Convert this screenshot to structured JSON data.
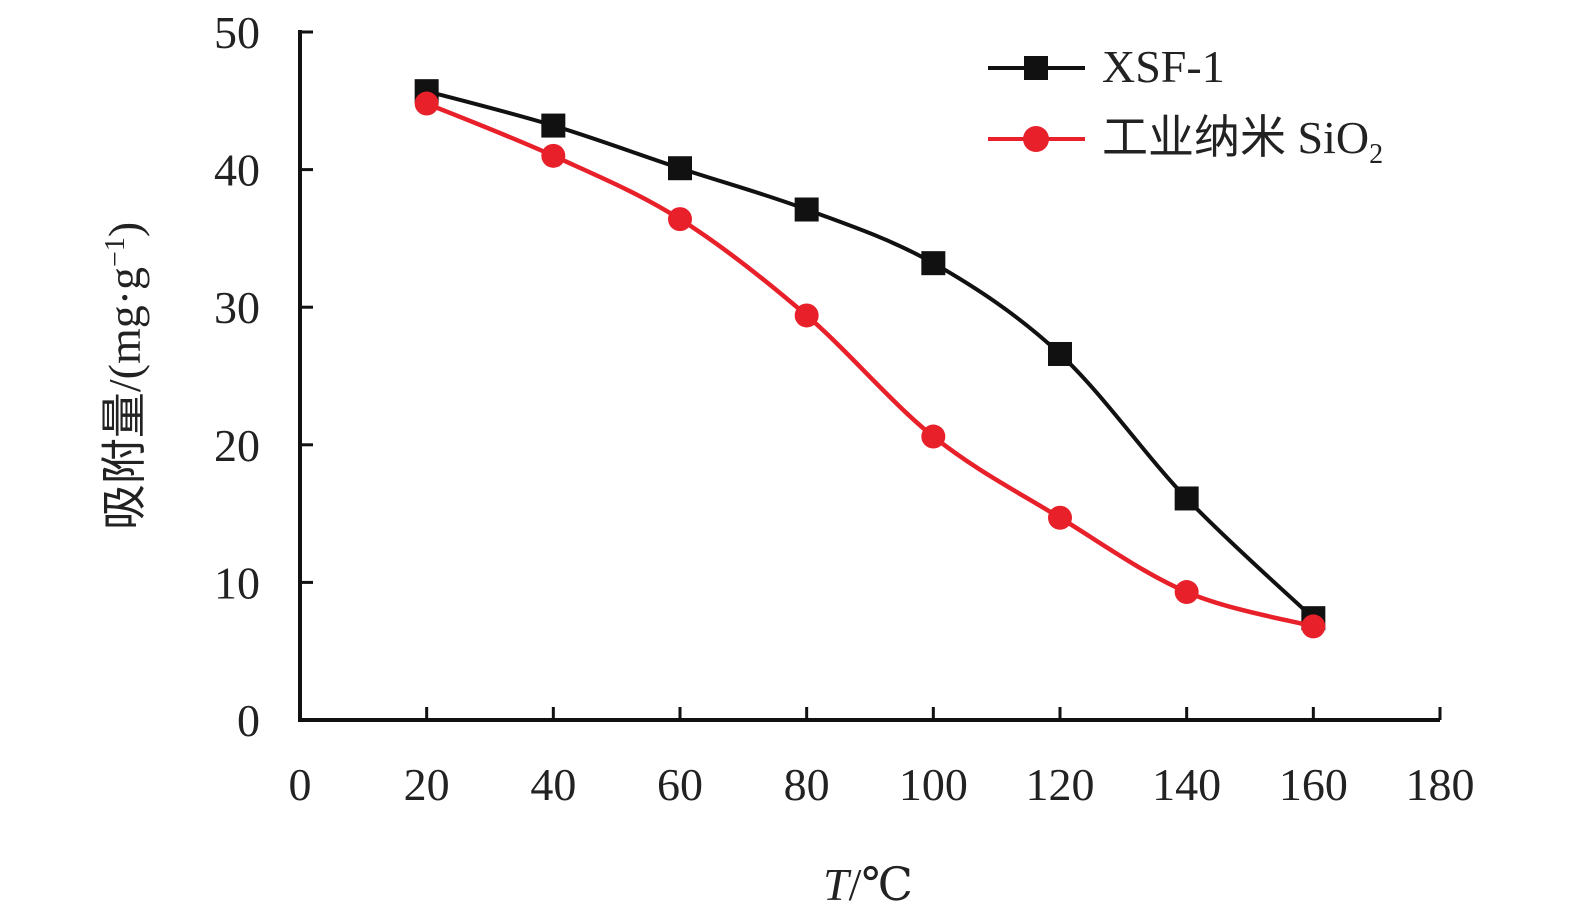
{
  "chart_data": {
    "type": "line",
    "x": [
      20,
      40,
      60,
      80,
      100,
      120,
      140,
      160
    ],
    "xlim": [
      0,
      180
    ],
    "ylim": [
      0,
      50
    ],
    "xticks": [
      0,
      20,
      40,
      60,
      80,
      100,
      120,
      140,
      160,
      180
    ],
    "yticks": [
      0,
      10,
      20,
      30,
      40,
      50
    ],
    "xlabel_italic": "T",
    "xlabel_rest": "/℃",
    "ylabel_main": "吸附量/(mg·g",
    "ylabel_sup": "−1",
    "ylabel_close": ")",
    "grid": false,
    "legend_position": "top-right",
    "series": [
      {
        "name": "XSF-1",
        "name_main": "XSF-1",
        "name_sub": "",
        "marker": "square",
        "color": "#000000",
        "values": [
          45.7,
          43.2,
          40.1,
          37.1,
          33.2,
          26.6,
          16.1,
          7.4
        ]
      },
      {
        "name": "工业纳米 SiO2",
        "name_main": "工业纳米 SiO",
        "name_sub": "2",
        "marker": "circle",
        "color": "#e8202a",
        "values": [
          44.8,
          41.0,
          36.4,
          29.4,
          20.6,
          14.7,
          9.3,
          6.8
        ]
      }
    ]
  }
}
